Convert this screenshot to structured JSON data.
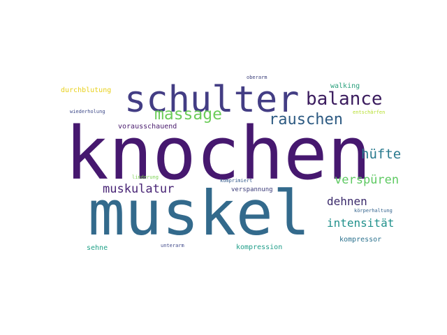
{
  "word_cloud": {
    "words": [
      {
        "text": "knochen",
        "color": "#46186f"
      },
      {
        "text": "muskel",
        "color": "#336a8c"
      },
      {
        "text": "schulter",
        "color": "#433d84"
      },
      {
        "text": "balance",
        "color": "#3b1c5e"
      },
      {
        "text": "massage",
        "color": "#6ccd5a"
      },
      {
        "text": "rauschen",
        "color": "#2d5a82"
      },
      {
        "text": "hüfte",
        "color": "#2a7a8e"
      },
      {
        "text": "verspüren",
        "color": "#5ec962"
      },
      {
        "text": "muskulatur",
        "color": "#482475"
      },
      {
        "text": "dehnen",
        "color": "#3b2a6b"
      },
      {
        "text": "intensität",
        "color": "#21918c"
      },
      {
        "text": "durchblutung",
        "color": "#e8d01a"
      },
      {
        "text": "walking",
        "color": "#2aa07c"
      },
      {
        "text": "oberarm",
        "color": "#3b3f7a"
      },
      {
        "text": "wiederholung",
        "color": "#3e4a89"
      },
      {
        "text": "entschärfen",
        "color": "#b5de2b"
      },
      {
        "text": "vorausschauend",
        "color": "#481a6c"
      },
      {
        "text": "linderung",
        "color": "#7ad151"
      },
      {
        "text": "komprimiert",
        "color": "#365c8d"
      },
      {
        "text": "verspannung",
        "color": "#3a3a78"
      },
      {
        "text": "körperhaltung",
        "color": "#33638d"
      },
      {
        "text": "kompressor",
        "color": "#2c728e"
      },
      {
        "text": "sehne",
        "color": "#1fa187"
      },
      {
        "text": "unterarm",
        "color": "#3f4889"
      },
      {
        "text": "kompression",
        "color": "#1f9e89"
      }
    ]
  }
}
